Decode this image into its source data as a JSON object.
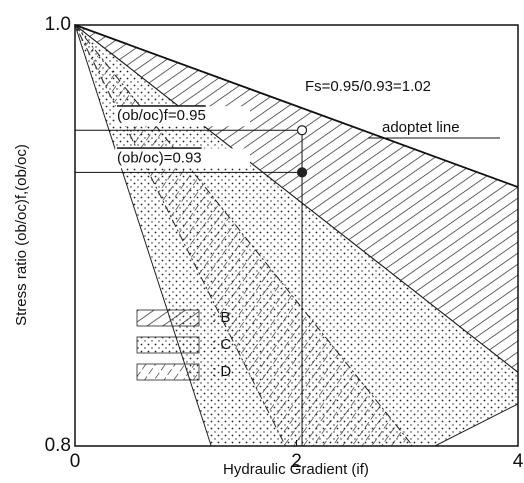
{
  "chart_data": {
    "type": "region",
    "xlabel": "Hydraulic Gradient (if)",
    "ylabel": "Stress ratio (ob/oc)f,(ob/oc)",
    "xlim": [
      0,
      4
    ],
    "ylim": [
      0.8,
      1.0
    ],
    "xticks": [
      0,
      2,
      4
    ],
    "yticks": [
      {
        "value": 1.0,
        "label": "1.0"
      },
      {
        "value": 0.8,
        "label": "0.8"
      }
    ],
    "regions": [
      {
        "name": ": B",
        "pattern": "hatch",
        "x": [
          0,
          4,
          4
        ],
        "values": [
          1.0,
          0.923,
          0.835
        ]
      },
      {
        "name": ": C",
        "pattern": "dots",
        "x": [
          0,
          4,
          4,
          3.25,
          1.23
        ],
        "values": [
          1.0,
          0.835,
          0.82,
          0.8,
          0.8
        ]
      },
      {
        "name": ": D",
        "pattern": "dash",
        "x": [
          0,
          3.05,
          1.9
        ],
        "values": [
          1.0,
          0.8,
          0.8
        ]
      }
    ],
    "adopted_line": {
      "x": [
        0,
        4
      ],
      "values": [
        1.0,
        0.923
      ]
    },
    "points": [
      {
        "x": 2.05,
        "y": 0.95,
        "fill": "open",
        "label": "(ob/oc)f=0.95"
      },
      {
        "x": 2.05,
        "y": 0.93,
        "fill": "filled",
        "label": "(ob/oc)=0.93"
      }
    ],
    "annotations": [
      "Fs=0.95/0.93=1.02",
      "adoptet line"
    ]
  }
}
